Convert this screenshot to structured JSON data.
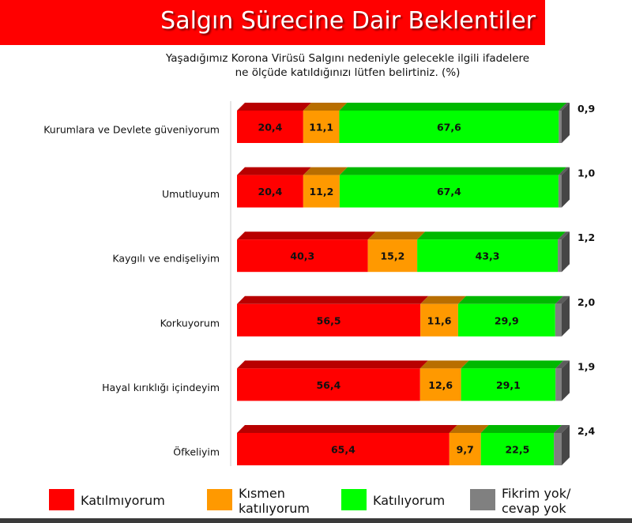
{
  "header": {
    "title": "Salgın Sürecine Dair Beklentiler",
    "subtitle_line1": "Yaşadığımız Korona Virüsü Salgını nedeniyle gelecekle ilgili ifadelere",
    "subtitle_line2": "ne ölçüde katıldığınızı lütfen belirtiniz. (%)"
  },
  "colors": {
    "title_bg": "#ff0000",
    "katilmiyorum": "#ff0000",
    "kismen": "#ff9900",
    "katiliyorum": "#00ff00",
    "fikrim_yok": "#808080"
  },
  "chart_data": {
    "type": "bar",
    "orientation": "horizontal",
    "stacked": true,
    "categories": [
      "Kurumlara ve Devlete güveniyorum",
      "Umutluyum",
      "Kaygılı ve endişeliyim",
      "Korkuyorum",
      "Hayal kırıklığı içindeyim",
      "Öfkeliyim"
    ],
    "series": [
      {
        "name": "Katılmıyorum",
        "values": [
          20.4,
          20.4,
          40.3,
          56.5,
          56.4,
          65.4
        ]
      },
      {
        "name": "Kısmen katılıyorum",
        "values": [
          11.1,
          11.2,
          15.2,
          11.6,
          12.6,
          9.7
        ]
      },
      {
        "name": "Katılıyorum",
        "values": [
          67.6,
          67.4,
          43.3,
          29.9,
          29.1,
          22.5
        ]
      },
      {
        "name": "Fikrim yok/ cevap yok",
        "values": [
          0.9,
          1.0,
          1.2,
          2.0,
          1.9,
          2.4
        ]
      }
    ],
    "value_labels": [
      [
        "20,4",
        "11,1",
        "67,6",
        "0,9"
      ],
      [
        "20,4",
        "11,2",
        "67,4",
        "1,0"
      ],
      [
        "40,3",
        "15,2",
        "43,3",
        "1,2"
      ],
      [
        "56,5",
        "11,6",
        "29,9",
        "2,0"
      ],
      [
        "56,4",
        "12,6",
        "29,1",
        "1,9"
      ],
      [
        "65,4",
        "9,7",
        "22,5",
        "2,4"
      ]
    ],
    "xlim": [
      0,
      100
    ],
    "grid": false,
    "legend_position": "bottom"
  },
  "legend": [
    {
      "line1": "Katılmıyorum",
      "line2": ""
    },
    {
      "line1": "Kısmen",
      "line2": "katılıyorum"
    },
    {
      "line1": "Katılıyorum",
      "line2": ""
    },
    {
      "line1": "Fikrim yok/",
      "line2": "cevap yok"
    }
  ]
}
